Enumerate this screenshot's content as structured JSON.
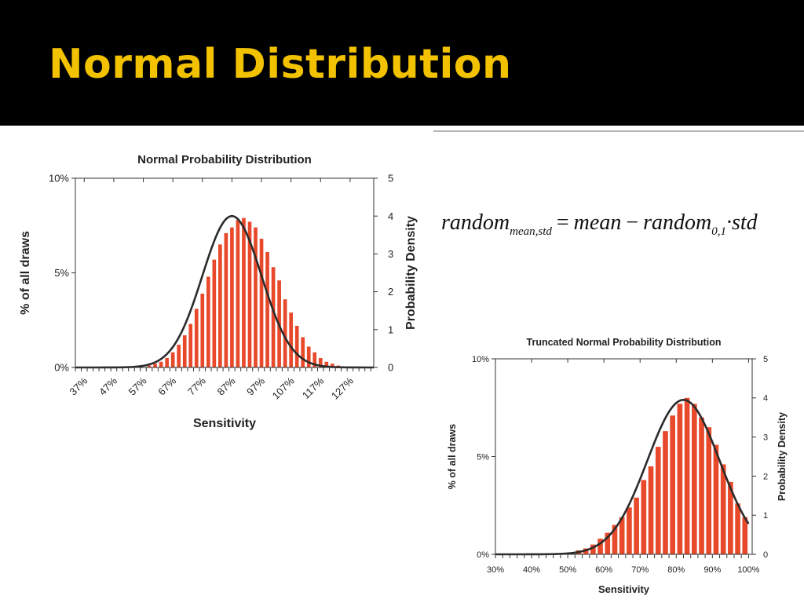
{
  "slide": {
    "title": "Normal Distribution",
    "accent_color": "#f2c200",
    "header_background": "#000000"
  },
  "formula": {
    "lhs": "random",
    "lhs_sub": "mean,std",
    "equals": "=",
    "term1": "mean",
    "minus": "−",
    "term2": "random",
    "term2_sub": "0,1",
    "dot": "·",
    "term3": "std"
  },
  "chart_data": [
    {
      "type": "bar",
      "title": "Normal Probability Distribution",
      "xlabel": "Sensitivity",
      "ylabel": "% of all draws",
      "ylabel_right": "Probability Density",
      "bar_color": "#e8492b",
      "curve_color": "#2b2b2b",
      "xlim": [
        34,
        135
      ],
      "ylim": [
        0,
        10
      ],
      "yticks": [
        0,
        5,
        10
      ],
      "ytick_labels": [
        "0%",
        "5%",
        "10%"
      ],
      "ylim_right": [
        0,
        5
      ],
      "yticks_right": [
        0,
        1,
        2,
        3,
        4,
        5
      ],
      "ytick_right_labels": [
        "0",
        "1",
        "2",
        "3",
        "4",
        "5"
      ],
      "xticks": [
        37,
        47,
        57,
        67,
        77,
        87,
        97,
        107,
        117,
        127
      ],
      "xtick_labels": [
        "37%",
        "47%",
        "57%",
        "67%",
        "77%",
        "87%",
        "97%",
        "107%",
        "117%",
        "127%"
      ],
      "categories": [
        35,
        37,
        39,
        41,
        43,
        45,
        47,
        49,
        51,
        53,
        55,
        57,
        59,
        61,
        63,
        65,
        67,
        69,
        71,
        73,
        75,
        77,
        79,
        81,
        83,
        85,
        87,
        89,
        91,
        93,
        95,
        97,
        99,
        101,
        103,
        105,
        107,
        109,
        111,
        113,
        115,
        117,
        119,
        121,
        123,
        125,
        127,
        129,
        131,
        133
      ],
      "values": [
        0,
        0,
        0,
        0,
        0,
        0,
        0,
        0,
        0,
        0,
        0,
        0,
        0.1,
        0.2,
        0.3,
        0.5,
        0.8,
        1.2,
        1.7,
        2.3,
        3.1,
        3.9,
        4.8,
        5.7,
        6.5,
        7.1,
        7.4,
        7.8,
        7.9,
        7.7,
        7.4,
        6.8,
        6.1,
        5.3,
        4.6,
        3.6,
        2.9,
        2.2,
        1.6,
        1.1,
        0.8,
        0.5,
        0.3,
        0.2,
        0.1,
        0,
        0,
        0,
        0,
        0
      ],
      "curve": {
        "name": "",
        "mean": 87,
        "std": 10,
        "peak_density": 4
      }
    },
    {
      "type": "bar",
      "title": "Truncated Normal Probability Distribution",
      "xlabel": "Sensitivity",
      "ylabel": "% of all draws",
      "ylabel_right": "Probability Density",
      "bar_color": "#e8492b",
      "curve_color": "#2b2b2b",
      "xlim": [
        30,
        101
      ],
      "ylim": [
        0,
        10
      ],
      "yticks": [
        0,
        5,
        10
      ],
      "ytick_labels": [
        "0%",
        "5%",
        "10%"
      ],
      "ylim_right": [
        0,
        5
      ],
      "yticks_right": [
        0,
        1,
        2,
        3,
        4,
        5
      ],
      "ytick_right_labels": [
        "0",
        "1",
        "2",
        "3",
        "4",
        "5"
      ],
      "xticks": [
        30,
        40,
        50,
        60,
        70,
        80,
        90,
        100
      ],
      "xtick_labels": [
        "30%",
        "40%",
        "50%",
        "60%",
        "70%",
        "80%",
        "90%",
        "100%"
      ],
      "categories": [
        51,
        53,
        55,
        57,
        59,
        61,
        63,
        65,
        67,
        69,
        71,
        73,
        75,
        77,
        79,
        81,
        83,
        85,
        87,
        89,
        91,
        93,
        95,
        97,
        99
      ],
      "values": [
        0.1,
        0.2,
        0.3,
        0.5,
        0.8,
        1.1,
        1.5,
        1.9,
        2.4,
        2.9,
        3.8,
        4.5,
        5.5,
        6.3,
        7.1,
        7.7,
        8.0,
        7.7,
        7.0,
        6.5,
        5.6,
        4.6,
        3.7,
        2.6,
        1.9
      ],
      "curve": {
        "name": "",
        "mean": 82,
        "std": 10,
        "peak_density": 3.95,
        "truncate_at": 100
      }
    }
  ]
}
